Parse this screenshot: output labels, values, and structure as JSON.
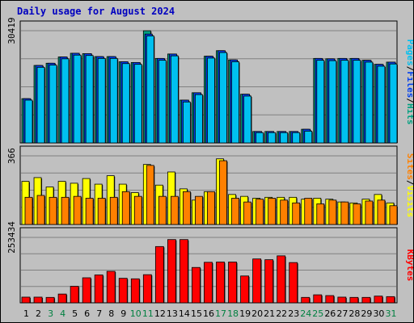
{
  "title": "Daily usage for August 2024",
  "chart_data": [
    {
      "type": "bar",
      "name": "hits-files-pages",
      "categories": [
        "1",
        "2",
        "3",
        "4",
        "5",
        "6",
        "7",
        "8",
        "9",
        "10",
        "11",
        "12",
        "13",
        "14",
        "15",
        "16",
        "17",
        "18",
        "19",
        "20",
        "21",
        "22",
        "23",
        "24",
        "25",
        "26",
        "27",
        "28",
        "29",
        "30",
        "31"
      ],
      "ymax_label": "30419",
      "ylim": [
        0,
        30419
      ],
      "legend": [
        "Pages",
        "Files",
        "Hits"
      ],
      "colors": {
        "Pages": "#00c0f0",
        "Files": "#0040f0",
        "Hits": "#00a080"
      },
      "series": [
        {
          "name": "Hits",
          "values": [
            12000,
            21000,
            21600,
            23300,
            24300,
            24200,
            23400,
            23400,
            22000,
            21800,
            30400,
            22900,
            24100,
            11600,
            13600,
            23500,
            25000,
            22500,
            13200,
            3100,
            3100,
            3100,
            3100,
            3700,
            22900,
            22800,
            22900,
            22900,
            22400,
            21300,
            21900
          ]
        },
        {
          "name": "Files",
          "values": [
            12000,
            21000,
            21600,
            23300,
            24300,
            24200,
            23400,
            23400,
            22000,
            21800,
            29500,
            22900,
            24100,
            11600,
            13600,
            23500,
            25000,
            22500,
            13200,
            3100,
            3100,
            3100,
            3100,
            3700,
            22900,
            22800,
            22900,
            22900,
            22400,
            21300,
            21900
          ]
        },
        {
          "name": "Pages",
          "values": [
            11600,
            20500,
            21100,
            22800,
            23800,
            23700,
            22900,
            22900,
            21500,
            21300,
            29000,
            22400,
            23600,
            11100,
            13100,
            23000,
            24500,
            22000,
            12700,
            2800,
            2800,
            2800,
            2800,
            3200,
            22400,
            22300,
            22400,
            22400,
            21900,
            20800,
            21400
          ]
        }
      ]
    },
    {
      "type": "bar",
      "name": "visits-sites",
      "categories": [
        "1",
        "2",
        "3",
        "4",
        "5",
        "6",
        "7",
        "8",
        "9",
        "10",
        "11",
        "12",
        "13",
        "14",
        "15",
        "16",
        "17",
        "18",
        "19",
        "20",
        "21",
        "22",
        "23",
        "24",
        "25",
        "26",
        "27",
        "28",
        "29",
        "30",
        "31"
      ],
      "ymax_label": "366",
      "ylim": [
        0,
        366
      ],
      "legend": [
        "Sites",
        "Visits"
      ],
      "colors": {
        "Visits": "#ffff00",
        "Sites": "#ff8000"
      },
      "series": [
        {
          "name": "Visits",
          "values": [
            230,
            250,
            200,
            230,
            220,
            245,
            215,
            260,
            215,
            170,
            320,
            210,
            280,
            190,
            130,
            175,
            350,
            160,
            150,
            140,
            145,
            145,
            145,
            135,
            140,
            135,
            120,
            115,
            135,
            160,
            115
          ]
        },
        {
          "name": "Sites",
          "values": [
            145,
            155,
            145,
            145,
            150,
            140,
            140,
            145,
            175,
            150,
            315,
            150,
            150,
            175,
            150,
            175,
            340,
            140,
            120,
            135,
            140,
            130,
            115,
            140,
            110,
            130,
            120,
            110,
            125,
            130,
            100
          ]
        }
      ]
    },
    {
      "type": "bar",
      "name": "kbytes",
      "categories": [
        "1",
        "2",
        "3",
        "4",
        "5",
        "6",
        "7",
        "8",
        "9",
        "10",
        "11",
        "12",
        "13",
        "14",
        "15",
        "16",
        "17",
        "18",
        "19",
        "20",
        "21",
        "22",
        "23",
        "24",
        "25",
        "26",
        "27",
        "28",
        "29",
        "30",
        "31"
      ],
      "ymax_label": "253434",
      "ylim": [
        0,
        253434
      ],
      "legend": [
        "KBytes"
      ],
      "colors": {
        "KBytes": "#ff0000"
      },
      "series": [
        {
          "name": "KBytes",
          "values": [
            22000,
            22000,
            21000,
            34000,
            64000,
            97000,
            108000,
            122000,
            95000,
            93000,
            109000,
            218000,
            245000,
            245000,
            137000,
            157000,
            158000,
            158000,
            104000,
            170000,
            167000,
            182000,
            156000,
            21000,
            31000,
            28000,
            22000,
            21000,
            21000,
            26000,
            24000
          ]
        }
      ]
    }
  ],
  "day_label_colors": {
    "weekday": "#000000",
    "weekend": "#008040"
  },
  "weekend_days": [
    3,
    4,
    10,
    11,
    17,
    18,
    24,
    25,
    31
  ]
}
